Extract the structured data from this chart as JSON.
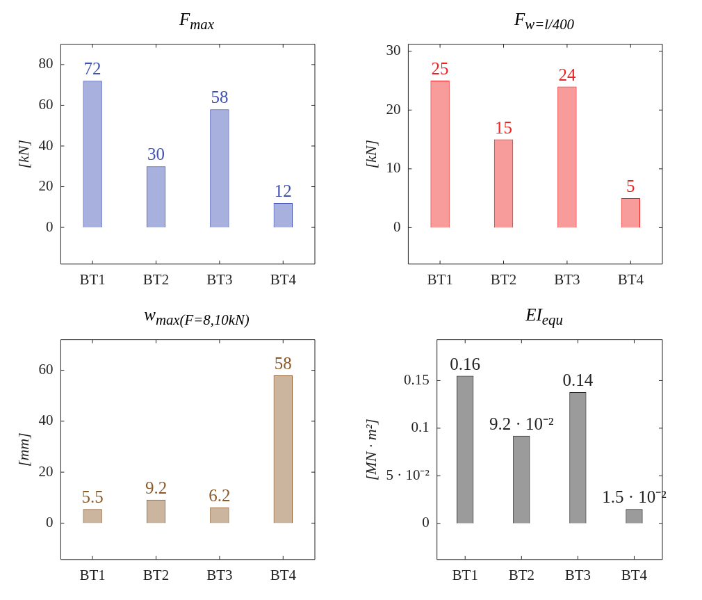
{
  "chart_data": [
    {
      "type": "bar",
      "title": "F$_{max}$",
      "ylabel": "[kN]",
      "categories": [
        "BT1",
        "BT2",
        "BT3",
        "BT4"
      ],
      "values": [
        72,
        30,
        58,
        12
      ],
      "color": "#3f51b5",
      "ylim": [
        -18,
        90
      ],
      "yticks": [
        0,
        20,
        40,
        60,
        80
      ],
      "data_labels": true
    },
    {
      "type": "bar",
      "title": "F$_{w=l/400}$",
      "ylabel": "[kN]",
      "categories": [
        "BT1",
        "BT2",
        "BT3",
        "BT4"
      ],
      "values": [
        25,
        15,
        24,
        5
      ],
      "color": "#ee2222",
      "ylim": [
        -6.2,
        31.2
      ],
      "yticks": [
        0,
        10,
        20,
        30
      ],
      "data_labels": true
    },
    {
      "type": "bar",
      "title": "w$_{max(F=8,10kN)}$",
      "ylabel": "[mm]",
      "categories": [
        "BT1",
        "BT2",
        "BT3",
        "BT4"
      ],
      "values": [
        5.5,
        9.2,
        6.2,
        58
      ],
      "color": "#8b5a2b",
      "ylim": [
        -14.3,
        72
      ],
      "yticks": [
        0,
        20,
        40,
        60
      ],
      "data_labels": true
    },
    {
      "type": "bar",
      "title": "EI$_{equ}$",
      "ylabel": "[MN · m²]",
      "categories": [
        "BT1",
        "BT2",
        "BT3",
        "BT4"
      ],
      "values": [
        0.155,
        0.092,
        0.138,
        0.015
      ],
      "value_labels": [
        "0.16",
        "9.2 · 10⁻²",
        "0.14",
        "1.5 · 10⁻²"
      ],
      "color": "#222222",
      "ylim": [
        -0.038,
        0.193
      ],
      "yticks": [
        0,
        {
          "value": 0.05,
          "label": "5 · 10⁻²"
        },
        0.1,
        0.15
      ]
    }
  ]
}
